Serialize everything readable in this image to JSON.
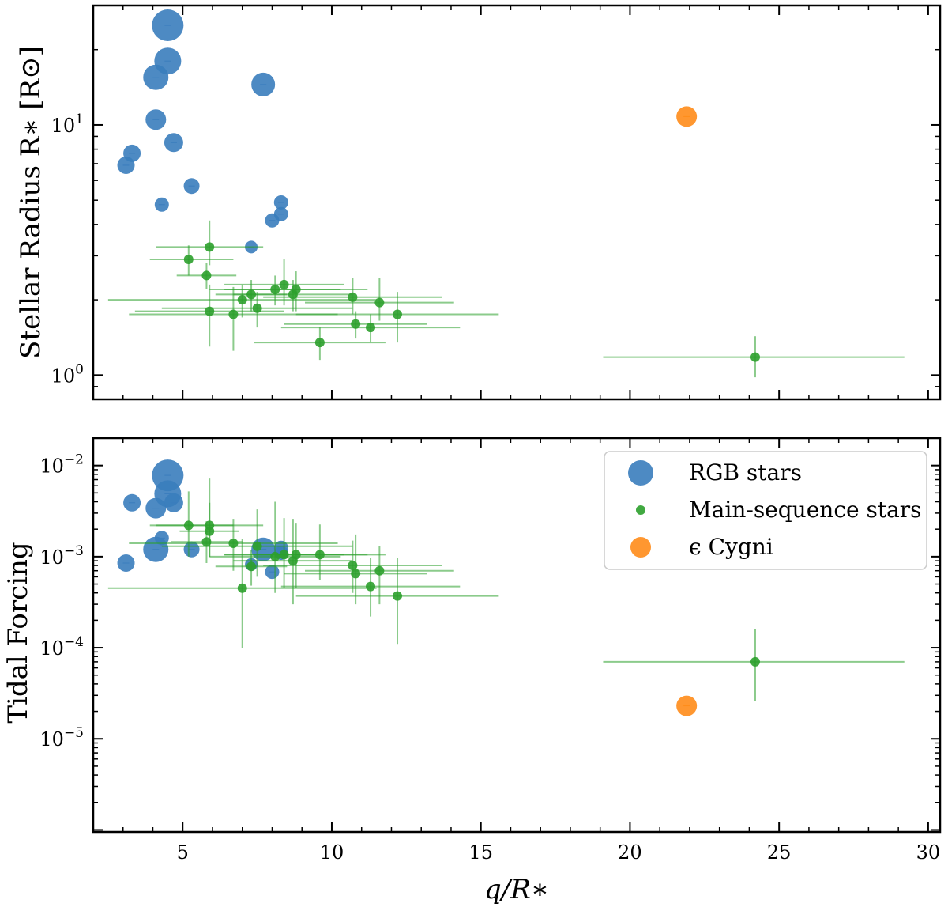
{
  "colors": {
    "rgb": "#3a7dbd",
    "ms": "#2ca02c",
    "eps": "#ff8c1a"
  },
  "legend": {
    "rgb": "RGB stars",
    "ms": "Main-sequence stars",
    "eps": "ϵ Cygni"
  },
  "chart_data": [
    {
      "type": "scatter",
      "yscale": "log",
      "xlim": [
        2,
        30.4
      ],
      "ylim": [
        0.8,
        30
      ],
      "ylabel": "Stellar Radius R∗ [R⊙]",
      "xlabel": "",
      "x_ticks": [
        {
          "value": 5,
          "label": ""
        },
        {
          "value": 10,
          "label": ""
        },
        {
          "value": 15,
          "label": ""
        },
        {
          "value": 20,
          "label": ""
        },
        {
          "value": 25,
          "label": ""
        },
        {
          "value": 30,
          "label": ""
        }
      ],
      "y_ticks": [
        {
          "value": 1,
          "base": "10",
          "exp": "0"
        },
        {
          "value": 10,
          "base": "10",
          "exp": "1"
        }
      ],
      "series": [
        {
          "name": "RGB stars",
          "color_key": "rgb",
          "points": [
            {
              "x": 4.5,
              "y": 25,
              "s": 20
            },
            {
              "x": 4.5,
              "y": 18,
              "s": 17
            },
            {
              "x": 4.1,
              "y": 15.5,
              "s": 16
            },
            {
              "x": 7.7,
              "y": 14.5,
              "s": 15
            },
            {
              "x": 4.1,
              "y": 10.5,
              "s": 13
            },
            {
              "x": 4.7,
              "y": 8.5,
              "s": 12
            },
            {
              "x": 3.3,
              "y": 7.7,
              "s": 11
            },
            {
              "x": 3.1,
              "y": 6.9,
              "s": 11
            },
            {
              "x": 5.3,
              "y": 5.7,
              "s": 10
            },
            {
              "x": 4.3,
              "y": 4.8,
              "s": 9
            },
            {
              "x": 8.3,
              "y": 4.9,
              "s": 9
            },
            {
              "x": 8.3,
              "y": 4.4,
              "s": 9
            },
            {
              "x": 8.0,
              "y": 4.15,
              "s": 9
            },
            {
              "x": 7.3,
              "y": 3.25,
              "s": 8
            }
          ]
        },
        {
          "name": "Main-sequence stars",
          "color_key": "ms",
          "points": [
            {
              "x": 5.9,
              "y": 3.25,
              "xerr": [
                1.8,
                1.8
              ],
              "yerr": [
                0.5,
                0.9
              ]
            },
            {
              "x": 5.2,
              "y": 2.9,
              "xerr": [
                1.3,
                1.5
              ],
              "yerr": [
                0.4,
                0.4
              ]
            },
            {
              "x": 5.8,
              "y": 2.5,
              "xerr": [
                1.0,
                1.0
              ],
              "yerr": [
                0.3,
                0.3
              ]
            },
            {
              "x": 7.3,
              "y": 2.1,
              "xerr": [
                1.2,
                1.2
              ],
              "yerr": [
                0.3,
                0.3
              ]
            },
            {
              "x": 8.1,
              "y": 2.2,
              "xerr": [
                2.2,
                2.2
              ],
              "yerr": [
                0.3,
                0.3
              ]
            },
            {
              "x": 8.4,
              "y": 2.3,
              "xerr": [
                2.0,
                2.0
              ],
              "yerr": [
                0.4,
                0.6
              ]
            },
            {
              "x": 8.7,
              "y": 2.1,
              "xerr": [
                2.0,
                2.0
              ],
              "yerr": [
                0.3,
                0.3
              ]
            },
            {
              "x": 8.8,
              "y": 2.2,
              "xerr": [
                2.4,
                2.4
              ],
              "yerr": [
                0.4,
                0.4
              ]
            },
            {
              "x": 7.0,
              "y": 2.0,
              "xerr": [
                4.5,
                4.5
              ],
              "yerr": [
                0.3,
                0.3
              ]
            },
            {
              "x": 7.5,
              "y": 1.85,
              "xerr": [
                3.2,
                3.2
              ],
              "yerr": [
                0.3,
                0.3
              ]
            },
            {
              "x": 5.9,
              "y": 1.8,
              "xerr": [
                2.5,
                2.5
              ],
              "yerr": [
                0.5,
                0.5
              ]
            },
            {
              "x": 6.7,
              "y": 1.75,
              "xerr": [
                3.5,
                3.5
              ],
              "yerr": [
                0.5,
                0.5
              ]
            },
            {
              "x": 10.7,
              "y": 2.05,
              "xerr": [
                3.0,
                3.0
              ],
              "yerr": [
                0.3,
                0.4
              ]
            },
            {
              "x": 11.6,
              "y": 1.95,
              "xerr": [
                2.5,
                2.5
              ],
              "yerr": [
                0.3,
                0.5
              ]
            },
            {
              "x": 12.2,
              "y": 1.75,
              "xerr": [
                3.4,
                3.4
              ],
              "yerr": [
                0.4,
                0.4
              ]
            },
            {
              "x": 10.8,
              "y": 1.6,
              "xerr": [
                2.4,
                2.4
              ],
              "yerr": [
                0.2,
                0.2
              ]
            },
            {
              "x": 11.3,
              "y": 1.55,
              "xerr": [
                3.0,
                3.0
              ],
              "yerr": [
                0.2,
                0.2
              ]
            },
            {
              "x": 9.6,
              "y": 1.35,
              "xerr": [
                2.2,
                2.2
              ],
              "yerr": [
                0.2,
                0.2
              ]
            },
            {
              "x": 24.2,
              "y": 1.18,
              "xerr": [
                5.1,
                5.0
              ],
              "yerr": [
                0.2,
                0.25
              ]
            }
          ]
        },
        {
          "name": "ϵ Cygni",
          "color_key": "eps",
          "points": [
            {
              "x": 21.9,
              "y": 10.8,
              "s": 13
            }
          ]
        }
      ]
    },
    {
      "type": "scatter",
      "yscale": "log",
      "xlim": [
        2,
        30.4
      ],
      "ylim": [
        9.5e-07,
        0.02
      ],
      "ylabel": "Tidal Forcing",
      "xlabel": "q/R∗",
      "x_ticks": [
        {
          "value": 5,
          "label": "5"
        },
        {
          "value": 10,
          "label": "10"
        },
        {
          "value": 15,
          "label": "15"
        },
        {
          "value": 20,
          "label": "20"
        },
        {
          "value": 25,
          "label": "25"
        },
        {
          "value": 30,
          "label": "30"
        }
      ],
      "y_ticks": [
        {
          "value": 1e-05,
          "base": "10",
          "exp": "−5"
        },
        {
          "value": 0.0001,
          "base": "10",
          "exp": "−4"
        },
        {
          "value": 0.001,
          "base": "10",
          "exp": "−3"
        },
        {
          "value": 0.01,
          "base": "10",
          "exp": "−2"
        }
      ],
      "series": [
        {
          "name": "RGB stars",
          "color_key": "rgb",
          "points": [
            {
              "x": 4.5,
              "y": 0.0078,
              "s": 20
            },
            {
              "x": 4.5,
              "y": 0.0049,
              "s": 17
            },
            {
              "x": 4.7,
              "y": 0.0039,
              "s": 12
            },
            {
              "x": 3.3,
              "y": 0.0039,
              "s": 11
            },
            {
              "x": 4.1,
              "y": 0.0034,
              "s": 13
            },
            {
              "x": 4.3,
              "y": 0.0016,
              "s": 9
            },
            {
              "x": 4.1,
              "y": 0.0012,
              "s": 16
            },
            {
              "x": 5.3,
              "y": 0.0012,
              "s": 10
            },
            {
              "x": 7.7,
              "y": 0.0012,
              "s": 15
            },
            {
              "x": 8.3,
              "y": 0.00125,
              "s": 9
            },
            {
              "x": 8.3,
              "y": 0.0011,
              "s": 9
            },
            {
              "x": 3.1,
              "y": 0.00085,
              "s": 11
            },
            {
              "x": 7.3,
              "y": 0.00082,
              "s": 8
            },
            {
              "x": 8.0,
              "y": 0.00068,
              "s": 9
            }
          ]
        },
        {
          "name": "Main-sequence stars",
          "color_key": "ms",
          "points": [
            {
              "x": 5.2,
              "y": 0.0022,
              "xerr": [
                1.3,
                1.5
              ],
              "yerr": [
                0.0012,
                0.003
              ]
            },
            {
              "x": 5.9,
              "y": 0.0022,
              "xerr": [
                1.8,
                1.8
              ],
              "yerr": [
                0.0012,
                0.005
              ]
            },
            {
              "x": 5.9,
              "y": 0.0019,
              "xerr": [
                1.0,
                1.0
              ],
              "yerr": [
                0.0009,
                0.002
              ]
            },
            {
              "x": 5.8,
              "y": 0.00145,
              "xerr": [
                1.2,
                1.2
              ],
              "yerr": [
                0.0006,
                0.001
              ]
            },
            {
              "x": 6.7,
              "y": 0.0014,
              "xerr": [
                3.5,
                3.5
              ],
              "yerr": [
                0.0007,
                0.0012
              ]
            },
            {
              "x": 7.5,
              "y": 0.0013,
              "xerr": [
                3.2,
                3.2
              ],
              "yerr": [
                0.0007,
                0.002
              ]
            },
            {
              "x": 7.3,
              "y": 0.00078,
              "xerr": [
                1.2,
                1.2
              ],
              "yerr": [
                0.0003,
                0.0004
              ]
            },
            {
              "x": 8.1,
              "y": 0.001,
              "xerr": [
                2.2,
                2.2
              ],
              "yerr": [
                0.0006,
                0.003
              ]
            },
            {
              "x": 8.4,
              "y": 0.00105,
              "xerr": [
                2.0,
                2.0
              ],
              "yerr": [
                0.0006,
                0.0016
              ]
            },
            {
              "x": 8.7,
              "y": 0.0009,
              "xerr": [
                2.0,
                2.0
              ],
              "yerr": [
                0.0006,
                0.0017
              ]
            },
            {
              "x": 8.8,
              "y": 0.00105,
              "xerr": [
                2.4,
                2.4
              ],
              "yerr": [
                0.0006,
                0.0013
              ]
            },
            {
              "x": 9.6,
              "y": 0.00105,
              "xerr": [
                2.2,
                2.2
              ],
              "yerr": [
                0.0005,
                0.0012
              ]
            },
            {
              "x": 7.0,
              "y": 0.00045,
              "xerr": [
                4.5,
                4.5
              ],
              "yerr": [
                0.00035,
                0.0011
              ]
            },
            {
              "x": 10.7,
              "y": 0.0008,
              "xerr": [
                3.0,
                3.0
              ],
              "yerr": [
                0.0004,
                0.0007
              ]
            },
            {
              "x": 10.8,
              "y": 0.00065,
              "xerr": [
                2.4,
                2.4
              ],
              "yerr": [
                0.00035,
                0.0011
              ]
            },
            {
              "x": 11.6,
              "y": 0.0007,
              "xerr": [
                2.5,
                2.5
              ],
              "yerr": [
                0.0004,
                0.0006
              ]
            },
            {
              "x": 11.3,
              "y": 0.00047,
              "xerr": [
                3.0,
                3.0
              ],
              "yerr": [
                0.00025,
                0.0005
              ]
            },
            {
              "x": 12.2,
              "y": 0.00037,
              "xerr": [
                3.4,
                3.4
              ],
              "yerr": [
                0.00026,
                0.0006
              ]
            },
            {
              "x": 24.2,
              "y": 7e-05,
              "xerr": [
                5.1,
                5.0
              ],
              "yerr": [
                4.4e-05,
                9e-05
              ]
            }
          ]
        },
        {
          "name": "ϵ Cygni",
          "color_key": "eps",
          "points": [
            {
              "x": 21.9,
              "y": 2.3e-05,
              "s": 13
            }
          ]
        }
      ]
    }
  ]
}
